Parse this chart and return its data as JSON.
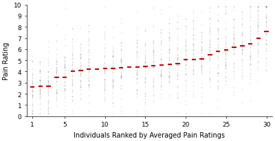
{
  "n_individuals": 30,
  "ylim": [
    0,
    10
  ],
  "yticks": [
    0,
    1,
    2,
    3,
    4,
    5,
    6,
    7,
    8,
    9,
    10
  ],
  "xticks": [
    1,
    5,
    10,
    15,
    20,
    25,
    30
  ],
  "xlabel": "Individuals Ranked by Averaged Pain Ratings",
  "ylabel": "Pain Rating",
  "violin_color": "#d3d3d3",
  "violin_edge_color": "#aaaaaa",
  "median_color": "#cc0000",
  "scatter_color": "#666666",
  "background_color": "#ffffff",
  "means": [
    2.6,
    2.7,
    2.7,
    3.5,
    3.5,
    4.0,
    4.1,
    4.2,
    4.2,
    4.3,
    4.3,
    4.35,
    4.4,
    4.4,
    4.45,
    4.5,
    4.6,
    4.65,
    4.7,
    5.1,
    5.1,
    5.15,
    5.5,
    5.8,
    5.9,
    6.2,
    6.3,
    6.5,
    7.0,
    7.6
  ],
  "stds": [
    1.5,
    1.4,
    1.6,
    1.7,
    1.6,
    1.8,
    1.8,
    1.8,
    1.8,
    1.9,
    1.9,
    1.9,
    1.9,
    1.9,
    1.9,
    2.0,
    2.0,
    2.0,
    2.0,
    2.0,
    2.0,
    2.0,
    2.0,
    2.0,
    2.0,
    2.0,
    2.0,
    2.0,
    2.0,
    2.0
  ],
  "seed": 42,
  "n_samples": 50,
  "violin_width": 0.32,
  "bw_method": 0.25
}
